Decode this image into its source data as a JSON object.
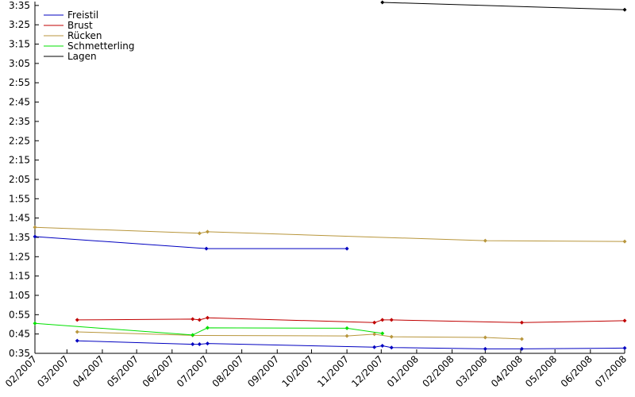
{
  "chart_data": {
    "type": "line",
    "title": "",
    "xlabel": "",
    "ylabel": "",
    "x_range": [
      "2007-02-01",
      "2008-07-01"
    ],
    "y_range": [
      "0:35",
      "3:37"
    ],
    "x_ticks": [
      "02/2007",
      "03/2007",
      "04/2007",
      "05/2007",
      "06/2007",
      "07/2007",
      "08/2007",
      "09/2007",
      "10/2007",
      "11/2007",
      "12/2007",
      "01/2008",
      "02/2008",
      "03/2008",
      "04/2008",
      "05/2008",
      "06/2008",
      "07/2008"
    ],
    "x_tick_dates": [
      "2007-02-01",
      "2007-03-01",
      "2007-04-01",
      "2007-05-01",
      "2007-06-01",
      "2007-07-01",
      "2007-08-01",
      "2007-09-01",
      "2007-10-01",
      "2007-11-01",
      "2007-12-01",
      "2008-01-01",
      "2008-02-01",
      "2008-03-01",
      "2008-04-01",
      "2008-05-01",
      "2008-06-01",
      "2008-07-01"
    ],
    "y_ticks": [
      "3:35",
      "3:25",
      "3:15",
      "3:05",
      "2:55",
      "2:45",
      "2:35",
      "2:25",
      "2:15",
      "2:05",
      "1:55",
      "1:45",
      "1:35",
      "1:25",
      "1:15",
      "1:05",
      "0:55",
      "0:45",
      "0:35"
    ],
    "grid": false,
    "legend_position": "top-left",
    "series": [
      {
        "name": "Freistil",
        "color": "#0000c0",
        "points": [
          {
            "x": "2007-02-01",
            "y": "1:35.4"
          },
          {
            "x": "2007-07-01",
            "y": "1:29.2"
          },
          {
            "x": "2007-11-01",
            "y": "1:29.2"
          }
        ]
      },
      {
        "name": "Freistil",
        "color": "#0000c0",
        "points": [
          {
            "x": "2007-03-10",
            "y": "0:41.5"
          },
          {
            "x": "2007-06-19",
            "y": "0:39.7"
          },
          {
            "x": "2007-06-25",
            "y": "0:39.7"
          },
          {
            "x": "2007-07-02",
            "y": "0:40.1"
          },
          {
            "x": "2007-11-25",
            "y": "0:38.2"
          },
          {
            "x": "2007-12-02",
            "y": "0:38.9"
          },
          {
            "x": "2007-12-10",
            "y": "0:38.0"
          },
          {
            "x": "2008-03-01",
            "y": "0:37.3"
          },
          {
            "x": "2008-04-02",
            "y": "0:37.3"
          },
          {
            "x": "2008-07-01",
            "y": "0:37.7"
          }
        ]
      },
      {
        "name": "Brust",
        "color": "#c00000",
        "points": [
          {
            "x": "2007-03-10",
            "y": "0:52.3"
          },
          {
            "x": "2007-06-19",
            "y": "0:52.7"
          },
          {
            "x": "2007-06-25",
            "y": "0:52.3"
          },
          {
            "x": "2007-07-02",
            "y": "0:53.4"
          },
          {
            "x": "2007-11-25",
            "y": "0:50.9"
          },
          {
            "x": "2007-12-02",
            "y": "0:52.3"
          },
          {
            "x": "2007-12-10",
            "y": "0:52.3"
          },
          {
            "x": "2008-04-02",
            "y": "0:50.9"
          },
          {
            "x": "2008-07-01",
            "y": "0:51.9"
          }
        ]
      },
      {
        "name": "Rücken",
        "color": "#b8963c",
        "points": [
          {
            "x": "2007-02-01",
            "y": "1:40.2"
          },
          {
            "x": "2007-06-25",
            "y": "1:37.1"
          },
          {
            "x": "2007-07-02",
            "y": "1:37.9"
          },
          {
            "x": "2008-03-01",
            "y": "1:33.3"
          },
          {
            "x": "2008-07-01",
            "y": "1:32.9"
          }
        ]
      },
      {
        "name": "Rücken",
        "color": "#b8963c",
        "points": [
          {
            "x": "2007-03-10",
            "y": "0:46.1"
          },
          {
            "x": "2007-06-19",
            "y": "0:44.3"
          },
          {
            "x": "2007-11-01",
            "y": "0:44.0"
          },
          {
            "x": "2007-11-25",
            "y": "0:44.9"
          },
          {
            "x": "2007-12-10",
            "y": "0:43.6"
          },
          {
            "x": "2008-03-01",
            "y": "0:43.2"
          },
          {
            "x": "2008-04-02",
            "y": "0:42.4"
          }
        ]
      },
      {
        "name": "Schmetterling",
        "color": "#00e000",
        "points": [
          {
            "x": "2007-02-01",
            "y": "0:50.5"
          },
          {
            "x": "2007-06-19",
            "y": "0:44.5"
          },
          {
            "x": "2007-07-02",
            "y": "0:48.2"
          },
          {
            "x": "2007-11-01",
            "y": "0:48.0"
          },
          {
            "x": "2007-12-02",
            "y": "0:45.3"
          }
        ]
      },
      {
        "name": "Lagen",
        "color": "#000000",
        "points": [
          {
            "x": "2007-12-02",
            "y": "3:36.6"
          },
          {
            "x": "2008-07-01",
            "y": "3:32.8"
          }
        ]
      }
    ],
    "legend": [
      {
        "name": "Freistil",
        "color": "#0000c0"
      },
      {
        "name": "Brust",
        "color": "#c00000"
      },
      {
        "name": "Rücken",
        "color": "#b8963c"
      },
      {
        "name": "Schmetterling",
        "color": "#00e000"
      },
      {
        "name": "Lagen",
        "color": "#000000"
      }
    ]
  }
}
